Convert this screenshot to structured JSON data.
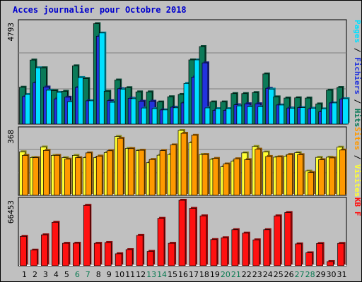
{
  "title": "Acces journalier pour Octobre 2018",
  "colors": {
    "hits": "#0b7a58",
    "files": "#2233dd",
    "pages": "#00e0ff",
    "visits": "#ffff33",
    "sites": "#ff9900",
    "kbytes": "#ff1111",
    "weekend_label": "#0a7a52",
    "weekday_label": "#000000",
    "background": "#c0c0c0"
  },
  "chart_data": [
    {
      "type": "bar",
      "name": "hits-files-pages",
      "ymax_label": "4793",
      "ylim": [
        0,
        4793
      ],
      "right_labels": [
        "Pages",
        "Fichiers",
        "Hits"
      ],
      "categories": [
        "1",
        "2",
        "3",
        "4",
        "5",
        "6",
        "7",
        "8",
        "9",
        "10",
        "11",
        "12",
        "13",
        "14",
        "15",
        "16",
        "17",
        "18",
        "19",
        "20",
        "21",
        "22",
        "23",
        "24",
        "25",
        "26",
        "27",
        "28",
        "29",
        "30",
        "31"
      ],
      "series": [
        {
          "name": "Hits",
          "values": [
            1740,
            3024,
            2658,
            1580,
            1548,
            2750,
            2150,
            4742,
            1550,
            2080,
            1720,
            1520,
            1520,
            1044,
            1290,
            1400,
            3030,
            3660,
            1045,
            1045,
            1440,
            1440,
            1488,
            2368,
            1285,
            1230,
            1240,
            1230,
            951,
            1600,
            1730
          ]
        },
        {
          "name": "Fichiers",
          "values": [
            1300,
            1950,
            1750,
            1190,
            1270,
            1730,
            1100,
            4150,
            1106,
            1670,
            1220,
            1080,
            1080,
            670,
            800,
            1000,
            2220,
            2890,
            650,
            650,
            910,
            960,
            960,
            1690,
            903,
            760,
            780,
            720,
            580,
            1000,
            1180
          ]
        },
        {
          "name": "Pages",
          "values": [
            1400,
            2658,
            1600,
            1500,
            1050,
            2200,
            1100,
            4300,
            1030,
            1650,
            1200,
            760,
            730,
            670,
            770,
            1920,
            3030,
            765,
            730,
            730,
            860,
            820,
            820,
            1650,
            900,
            750,
            780,
            750,
            720,
            1000,
            1200
          ]
        }
      ]
    },
    {
      "type": "bar",
      "name": "visits-sites",
      "ymax_label": "368",
      "ylim": [
        0,
        368
      ],
      "right_labels": [
        "Sites",
        "Visites"
      ],
      "categories": [
        "1",
        "2",
        "3",
        "4",
        "5",
        "6",
        "7",
        "8",
        "9",
        "10",
        "11",
        "12",
        "13",
        "14",
        "15",
        "16",
        "17",
        "18",
        "19",
        "20",
        "21",
        "22",
        "23",
        "24",
        "25",
        "26",
        "27",
        "28",
        "29",
        "30",
        "31"
      ],
      "series": [
        {
          "name": "Visites",
          "values": [
            244,
            212,
            271,
            224,
            211,
            224,
            211,
            211,
            240,
            330,
            263,
            251,
            183,
            225,
            229,
            364,
            295,
            229,
            202,
            160,
            192,
            238,
            274,
            243,
            214,
            220,
            239,
            136,
            213,
            214,
            270
          ]
        },
        {
          "name": "Sites",
          "values": [
            224,
            211,
            252,
            224,
            203,
            211,
            238,
            220,
            250,
            320,
            262,
            253,
            201,
            251,
            283,
            348,
            337,
            229,
            207,
            176,
            205,
            200,
            259,
            218,
            216,
            229,
            228,
            128,
            200,
            210,
            254
          ]
        }
      ]
    },
    {
      "type": "bar",
      "name": "kbytes",
      "ymax_label": "66453",
      "ylim": [
        0,
        66453
      ],
      "right_labels": [
        "KB F"
      ],
      "categories": [
        "1",
        "2",
        "3",
        "4",
        "5",
        "6",
        "7",
        "8",
        "9",
        "10",
        "11",
        "12",
        "13",
        "14",
        "15",
        "16",
        "17",
        "18",
        "19",
        "20",
        "21",
        "22",
        "23",
        "24",
        "25",
        "26",
        "27",
        "28",
        "29",
        "30",
        "31"
      ],
      "series": [
        {
          "name": "KB F",
          "values": [
            29800,
            15900,
            31400,
            44100,
            22800,
            22900,
            61300,
            22800,
            23600,
            12200,
            16400,
            30800,
            14600,
            48100,
            22800,
            66450,
            58200,
            50600,
            26600,
            28400,
            36600,
            33100,
            26300,
            36600,
            50600,
            54000,
            22200,
            13200,
            22600,
            4300,
            22700
          ]
        }
      ]
    }
  ],
  "x_labels": [
    {
      "text": "1",
      "weekend": false
    },
    {
      "text": "2",
      "weekend": false
    },
    {
      "text": "3",
      "weekend": false
    },
    {
      "text": "4",
      "weekend": false
    },
    {
      "text": "5",
      "weekend": false
    },
    {
      "text": "6",
      "weekend": true
    },
    {
      "text": "7",
      "weekend": true
    },
    {
      "text": "8",
      "weekend": false
    },
    {
      "text": "9",
      "weekend": false
    },
    {
      "text": "10",
      "weekend": false
    },
    {
      "text": "11",
      "weekend": false
    },
    {
      "text": "12",
      "weekend": false
    },
    {
      "text": "13",
      "weekend": true
    },
    {
      "text": "14",
      "weekend": true
    },
    {
      "text": "15",
      "weekend": false
    },
    {
      "text": "16",
      "weekend": false
    },
    {
      "text": "17",
      "weekend": false
    },
    {
      "text": "18",
      "weekend": false
    },
    {
      "text": "19",
      "weekend": false
    },
    {
      "text": "20",
      "weekend": true
    },
    {
      "text": "21",
      "weekend": true
    },
    {
      "text": "22",
      "weekend": false
    },
    {
      "text": "23",
      "weekend": false
    },
    {
      "text": "24",
      "weekend": false
    },
    {
      "text": "25",
      "weekend": false
    },
    {
      "text": "26",
      "weekend": false
    },
    {
      "text": "27",
      "weekend": true
    },
    {
      "text": "28",
      "weekend": true
    },
    {
      "text": "29",
      "weekend": false
    },
    {
      "text": "30",
      "weekend": false
    },
    {
      "text": "31",
      "weekend": false
    }
  ]
}
